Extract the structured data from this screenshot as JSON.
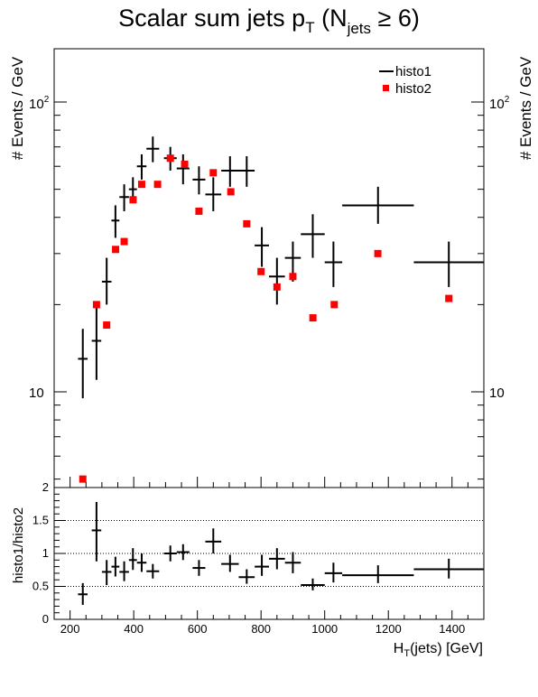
{
  "title": {
    "main": "Scalar sum jets p",
    "sub_t": "T",
    "paren_open": " (N",
    "sub_jets": "jets",
    "cond": " ≥ 6)"
  },
  "y_axis_label": "# Events / GeV",
  "ratio_y_label": "histo1/histo2",
  "x_axis_label": {
    "main": "H",
    "sub": "T",
    "rest": "(jets) [GeV]"
  },
  "legend": {
    "histo1": "histo1",
    "histo2": "histo2"
  },
  "colors": {
    "histo1": "#000000",
    "histo2": "#ff0000",
    "grid": "#000000"
  },
  "chart_data": [
    {
      "type": "scatter",
      "title": "",
      "ylabel": "# Events / GeV",
      "yscale": "log",
      "ylim": [
        5,
        150
      ],
      "xlim": [
        150,
        1500
      ],
      "grid": false,
      "legend_position": "top-right",
      "y_tick_labels": [
        "10",
        "10^2"
      ],
      "series": [
        {
          "name": "histo1",
          "style": "error-cross",
          "points": [
            {
              "x0": 225,
              "x1": 255,
              "y": 13,
              "ylo": 9.5,
              "yhi": 16.5
            },
            {
              "x0": 268,
              "x1": 298,
              "y": 15,
              "ylo": 11,
              "yhi": 19.5
            },
            {
              "x0": 300,
              "x1": 330,
              "y": 24,
              "ylo": 20,
              "yhi": 29
            },
            {
              "x0": 330,
              "x1": 355,
              "y": 39,
              "ylo": 34,
              "yhi": 44
            },
            {
              "x0": 355,
              "x1": 385,
              "y": 47,
              "ylo": 42,
              "yhi": 52
            },
            {
              "x0": 385,
              "x1": 410,
              "y": 50,
              "ylo": 45,
              "yhi": 55
            },
            {
              "x0": 410,
              "x1": 440,
              "y": 60,
              "ylo": 54,
              "yhi": 66
            },
            {
              "x0": 440,
              "x1": 480,
              "y": 69,
              "ylo": 62,
              "yhi": 76
            },
            {
              "x0": 495,
              "x1": 535,
              "y": 64,
              "ylo": 58,
              "yhi": 70
            },
            {
              "x0": 535,
              "x1": 575,
              "y": 59,
              "ylo": 52,
              "yhi": 66
            },
            {
              "x0": 585,
              "x1": 625,
              "y": 54,
              "ylo": 48,
              "yhi": 60
            },
            {
              "x0": 625,
              "x1": 675,
              "y": 48,
              "ylo": 42,
              "yhi": 55
            },
            {
              "x0": 675,
              "x1": 730,
              "y": 58,
              "ylo": 51,
              "yhi": 65
            },
            {
              "x0": 730,
              "x1": 780,
              "y": 58,
              "ylo": 51,
              "yhi": 65
            },
            {
              "x0": 780,
              "x1": 825,
              "y": 32,
              "ylo": 27,
              "yhi": 37
            },
            {
              "x0": 825,
              "x1": 875,
              "y": 25,
              "ylo": 20,
              "yhi": 29
            },
            {
              "x0": 875,
              "x1": 925,
              "y": 29,
              "ylo": 24,
              "yhi": 33
            },
            {
              "x0": 925,
              "x1": 1000,
              "y": 35,
              "ylo": 29,
              "yhi": 41
            },
            {
              "x0": 1000,
              "x1": 1055,
              "y": 28,
              "ylo": 23,
              "yhi": 33
            },
            {
              "x0": 1055,
              "x1": 1280,
              "y": 44,
              "ylo": 38,
              "yhi": 51
            },
            {
              "x0": 1280,
              "x1": 1500,
              "y": 28,
              "ylo": 23,
              "yhi": 33
            }
          ]
        },
        {
          "name": "histo2",
          "style": "square-marker",
          "points": [
            {
              "x": 240,
              "y": 5.0
            },
            {
              "x": 283,
              "y": 20
            },
            {
              "x": 315,
              "y": 17
            },
            {
              "x": 343,
              "y": 31
            },
            {
              "x": 370,
              "y": 33
            },
            {
              "x": 398,
              "y": 46
            },
            {
              "x": 425,
              "y": 52
            },
            {
              "x": 475,
              "y": 52
            },
            {
              "x": 515,
              "y": 64
            },
            {
              "x": 560,
              "y": 61
            },
            {
              "x": 605,
              "y": 42
            },
            {
              "x": 650,
              "y": 57
            },
            {
              "x": 705,
              "y": 49
            },
            {
              "x": 755,
              "y": 38
            },
            {
              "x": 800,
              "y": 26
            },
            {
              "x": 850,
              "y": 23
            },
            {
              "x": 900,
              "y": 25
            },
            {
              "x": 963,
              "y": 18
            },
            {
              "x": 1030,
              "y": 20
            },
            {
              "x": 1167,
              "y": 30
            },
            {
              "x": 1390,
              "y": 21
            }
          ]
        }
      ]
    },
    {
      "type": "scatter",
      "title": "",
      "xlabel": "H_T(jets) [GeV]",
      "ylabel": "histo1/histo2",
      "ylim": [
        0,
        2
      ],
      "xlim": [
        150,
        1500
      ],
      "yticks": [
        0,
        0.5,
        1,
        1.5,
        2
      ],
      "ytick_labels": [
        "0",
        "0.5",
        "1",
        "1.5",
        "2"
      ],
      "xticks": [
        200,
        400,
        600,
        800,
        1000,
        1200,
        1400
      ],
      "xtick_labels": [
        "200",
        "400",
        "600",
        "800",
        "1000",
        "1200",
        "1400"
      ],
      "grid_lines_y": [
        0.5,
        1,
        1.5
      ],
      "series": [
        {
          "name": "",
          "style": "error-cross",
          "points": [
            {
              "x0": 225,
              "x1": 255,
              "y": 0.38,
              "ylo": 0.22,
              "yhi": 0.55
            },
            {
              "x0": 268,
              "x1": 298,
              "y": 1.35,
              "ylo": 0.88,
              "yhi": 1.78
            },
            {
              "x0": 300,
              "x1": 330,
              "y": 0.72,
              "ylo": 0.52,
              "yhi": 0.9
            },
            {
              "x0": 330,
              "x1": 355,
              "y": 0.8,
              "ylo": 0.65,
              "yhi": 0.95
            },
            {
              "x0": 355,
              "x1": 385,
              "y": 0.72,
              "ylo": 0.58,
              "yhi": 0.88
            },
            {
              "x0": 385,
              "x1": 410,
              "y": 0.9,
              "ylo": 0.75,
              "yhi": 1.08
            },
            {
              "x0": 410,
              "x1": 440,
              "y": 0.86,
              "ylo": 0.72,
              "yhi": 1.0
            },
            {
              "x0": 440,
              "x1": 480,
              "y": 0.73,
              "ylo": 0.62,
              "yhi": 0.84
            },
            {
              "x0": 495,
              "x1": 535,
              "y": 1.0,
              "ylo": 0.88,
              "yhi": 1.12
            },
            {
              "x0": 535,
              "x1": 575,
              "y": 1.02,
              "ylo": 0.9,
              "yhi": 1.14
            },
            {
              "x0": 585,
              "x1": 625,
              "y": 0.78,
              "ylo": 0.66,
              "yhi": 0.9
            },
            {
              "x0": 625,
              "x1": 675,
              "y": 1.18,
              "ylo": 1.0,
              "yhi": 1.38
            },
            {
              "x0": 675,
              "x1": 730,
              "y": 0.84,
              "ylo": 0.72,
              "yhi": 0.98
            },
            {
              "x0": 730,
              "x1": 780,
              "y": 0.64,
              "ylo": 0.54,
              "yhi": 0.76
            },
            {
              "x0": 780,
              "x1": 825,
              "y": 0.8,
              "ylo": 0.66,
              "yhi": 0.98
            },
            {
              "x0": 825,
              "x1": 875,
              "y": 0.92,
              "ylo": 0.76,
              "yhi": 1.08
            },
            {
              "x0": 875,
              "x1": 925,
              "y": 0.86,
              "ylo": 0.7,
              "yhi": 1.02
            },
            {
              "x0": 925,
              "x1": 1000,
              "y": 0.52,
              "ylo": 0.44,
              "yhi": 0.62
            },
            {
              "x0": 1000,
              "x1": 1055,
              "y": 0.7,
              "ylo": 0.56,
              "yhi": 0.86
            },
            {
              "x0": 1055,
              "x1": 1280,
              "y": 0.67,
              "ylo": 0.55,
              "yhi": 0.82
            },
            {
              "x0": 1280,
              "x1": 1500,
              "y": 0.76,
              "ylo": 0.62,
              "yhi": 0.92
            }
          ]
        }
      ]
    }
  ]
}
